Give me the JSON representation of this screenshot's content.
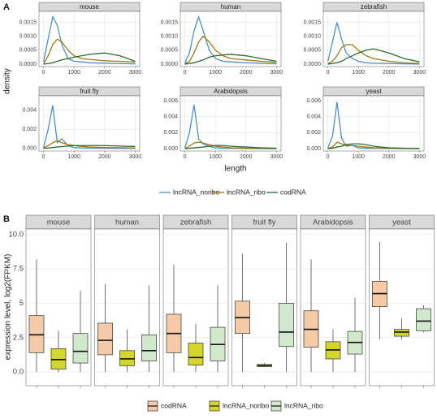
{
  "chart_data": [
    {
      "type": "line",
      "label": "A",
      "x_label": "length",
      "y_label": "density",
      "grid": true,
      "series": [
        {
          "name": "lncRNA_noribo",
          "color": "#4a90c8"
        },
        {
          "name": "lncRNA_ribo",
          "color": "#a07a10"
        },
        {
          "name": "codRNA",
          "color": "#2a6e2a"
        }
      ],
      "x": [
        0,
        150,
        300,
        450,
        600,
        800,
        1000,
        1250,
        1500,
        2000,
        2500,
        3000
      ],
      "xlim": [
        -150,
        3150
      ],
      "xticks": [
        0,
        1000,
        2000,
        3000
      ],
      "facets": [
        {
          "title": "mouse",
          "ylim": [
            -9e-05,
            0.0019
          ],
          "yticks": [
            {
              "value": 0,
              "label": "0.0000"
            },
            {
              "value": 0.0005,
              "label": "0.0005"
            },
            {
              "value": 0.001,
              "label": "0.0010"
            },
            {
              "value": 0.0015,
              "label": "0.0015"
            }
          ],
          "series": [
            {
              "values": [
                0.0001,
                0.0009,
                0.0017,
                0.0014,
                0.0007,
                0.0002,
                0.0001,
                8e-05,
                5e-05,
                3e-05,
                2e-05,
                1e-05
              ]
            },
            {
              "values": [
                2e-05,
                0.0003,
                0.0007,
                0.0009,
                0.0008,
                0.0005,
                0.0003,
                0.0002,
                0.00017,
                0.00012,
                0.0001,
                7e-05
              ]
            },
            {
              "values": [
                0,
                2e-05,
                5e-05,
                0.0001,
                0.00015,
                0.0002,
                0.00025,
                0.0003,
                0.00035,
                0.0004,
                0.0003,
                0.0001
              ]
            }
          ]
        },
        {
          "title": "human",
          "ylim": [
            -9e-05,
            0.0019
          ],
          "yticks": [
            {
              "value": 0,
              "label": "0.0000"
            },
            {
              "value": 0.0005,
              "label": "0.0005"
            },
            {
              "value": 0.001,
              "label": "0.0010"
            },
            {
              "value": 0.0015,
              "label": "0.0015"
            }
          ],
          "series": [
            {
              "values": [
                5e-05,
                0.0004,
                0.0012,
                0.0017,
                0.0012,
                0.0005,
                0.0002,
                0.0001,
                8e-05,
                5e-05,
                3e-05,
                1e-05
              ]
            },
            {
              "values": [
                2e-05,
                0.0001,
                0.0004,
                0.0008,
                0.001,
                0.0008,
                0.0005,
                0.0003,
                0.0002,
                0.00015,
                0.0001,
                6e-05
              ]
            },
            {
              "values": [
                0,
                2e-05,
                5e-05,
                0.0001,
                0.00015,
                0.00025,
                0.0003,
                0.00033,
                0.00035,
                0.0003,
                0.0002,
                0.0001
              ]
            }
          ]
        },
        {
          "title": "zebrafish",
          "ylim": [
            -9e-05,
            0.0019
          ],
          "yticks": [
            {
              "value": 0,
              "label": "0.0000"
            },
            {
              "value": 0.0005,
              "label": "0.0005"
            },
            {
              "value": 0.001,
              "label": "0.0010"
            },
            {
              "value": 0.0015,
              "label": "0.0015"
            }
          ],
          "series": [
            {
              "values": [
                0.0001,
                0.0008,
                0.0015,
                0.0009,
                0.0004,
                0.0002,
                0.0001,
                5e-05,
                3e-05,
                2e-05,
                1e-05,
                0
              ]
            },
            {
              "values": [
                2e-05,
                0.0001,
                0.0003,
                0.0006,
                0.0007,
                0.0007,
                0.0005,
                0.0003,
                0.0002,
                0.0001,
                5e-05,
                2e-05
              ]
            },
            {
              "values": [
                0,
                2e-05,
                5e-05,
                0.0001,
                0.0002,
                0.0003,
                0.0004,
                0.0005,
                0.00055,
                0.0004,
                0.0002,
                8e-05
              ]
            }
          ]
        },
        {
          "title": "fruit fly",
          "ylim": [
            -0.00027,
            0.0055
          ],
          "yticks": [
            {
              "value": 0,
              "label": "0.000"
            },
            {
              "value": 0.002,
              "label": "0.002"
            },
            {
              "value": 0.004,
              "label": "0.004"
            }
          ],
          "series": [
            {
              "values": [
                0.0001,
                0.002,
                0.0045,
                0.0006,
                0.001,
                0.0003,
                0.0001,
                5e-05,
                3e-05,
                2e-05,
                1e-05,
                0
              ]
            },
            {
              "values": [
                5e-05,
                0.0003,
                0.0006,
                0.0008,
                0.0006,
                0.0004,
                0.0003,
                0.0002,
                0.00015,
                0.0001,
                8e-05,
                5e-05
              ]
            },
            {
              "values": [
                1e-05,
                5e-05,
                0.0001,
                0.00015,
                0.0002,
                0.00025,
                0.0003,
                0.0003,
                0.0003,
                0.0003,
                0.00025,
                0.0002
              ]
            }
          ]
        },
        {
          "title": "Arabidopsis",
          "ylim": [
            -0.0003,
            0.0066
          ],
          "yticks": [
            {
              "value": 0,
              "label": "0.000"
            },
            {
              "value": 0.002,
              "label": "0.002"
            },
            {
              "value": 0.004,
              "label": "0.004"
            },
            {
              "value": 0.006,
              "label": "0.006"
            }
          ],
          "series": [
            {
              "values": [
                0.0001,
                0.002,
                0.0055,
                0.0012,
                0.0006,
                0.0003,
                0.0001,
                5e-05,
                3e-05,
                2e-05,
                1e-05,
                0
              ]
            },
            {
              "values": [
                5e-05,
                0.0003,
                0.0007,
                0.0008,
                0.0007,
                0.0005,
                0.0003,
                0.0002,
                0.0001,
                5e-05,
                3e-05,
                2e-05
              ]
            },
            {
              "values": [
                0,
                5e-05,
                0.0001,
                0.00015,
                0.0002,
                0.0003,
                0.0004,
                0.0004,
                0.0003,
                0.0002,
                0.0001,
                5e-05
              ]
            }
          ]
        },
        {
          "title": "yeast",
          "ylim": [
            -0.0003,
            0.0066
          ],
          "yticks": [
            {
              "value": 0,
              "label": "0.000"
            },
            {
              "value": 0.002,
              "label": "0.002"
            },
            {
              "value": 0.004,
              "label": "0.004"
            },
            {
              "value": 0.006,
              "label": "0.006"
            }
          ],
          "series": [
            {
              "values": [
                0.0001,
                0.0015,
                0.0058,
                0.0013,
                0.0003,
                0.0004,
                0.0001,
                5e-05,
                3e-05,
                2e-05,
                1e-05,
                0
              ]
            },
            {
              "values": [
                5e-05,
                0.0002,
                0.0008,
                0.0006,
                0.0004,
                0.0004,
                0.0003,
                0.0002,
                0.0001,
                5e-05,
                2e-05,
                1e-05
              ]
            },
            {
              "values": [
                0,
                5e-05,
                0.0002,
                0.0003,
                0.0005,
                0.0006,
                0.0006,
                0.0005,
                0.0003,
                0.0001,
                5e-05,
                2e-05
              ]
            }
          ]
        }
      ]
    },
    {
      "type": "box",
      "label": "B",
      "y_label": "expression level, log2(FPKM)",
      "grid": true,
      "series": [
        {
          "name": "codRNA",
          "color": "#f5cba7"
        },
        {
          "name": "lncRNA_noribo",
          "color": "#d4d62c"
        },
        {
          "name": "lncRNA_ribo",
          "color": "#d2e8cc"
        }
      ],
      "ylim": [
        -1.0,
        10.4
      ],
      "yticks": [
        {
          "value": 0,
          "label": "0.0"
        },
        2.5,
        5,
        7.5,
        {
          "value": 10,
          "label": "10.0"
        }
      ],
      "facets": [
        {
          "title": "mouse",
          "boxes": [
            [
              0,
              1.4,
              2.7,
              4.1,
              8.2
            ],
            [
              0,
              0.2,
              0.9,
              1.7,
              3.0
            ],
            [
              0,
              0.65,
              1.5,
              2.8,
              5.9
            ]
          ]
        },
        {
          "title": "human",
          "boxes": [
            [
              0,
              1.25,
              2.3,
              3.55,
              6.4
            ],
            [
              0,
              0.45,
              0.95,
              1.55,
              3.1
            ],
            [
              0,
              0.8,
              1.55,
              2.7,
              6.3
            ]
          ]
        },
        {
          "title": "zebrafish",
          "boxes": [
            [
              0,
              1.4,
              2.8,
              4.2,
              7.8
            ],
            [
              0,
              0.5,
              1.05,
              2.1,
              3.5
            ],
            [
              0,
              0.8,
              2.0,
              3.25,
              6.3
            ]
          ]
        },
        {
          "title": "fruit fly",
          "boxes": [
            [
              0,
              2.8,
              3.95,
              5.15,
              8.6
            ],
            [
              0.35,
              0.4,
              0.45,
              0.55,
              0.65
            ],
            [
              0,
              1.85,
              2.9,
              5.0,
              9.4
            ]
          ]
        },
        {
          "title": "Arabidopsis",
          "boxes": [
            [
              0,
              1.8,
              3.1,
              4.45,
              8.2
            ],
            [
              0,
              0.95,
              1.6,
              2.2,
              3.1
            ],
            [
              0,
              1.3,
              2.15,
              2.95,
              5.4
            ]
          ]
        },
        {
          "title": "yeast",
          "boxes": [
            [
              2.4,
              4.75,
              5.7,
              6.6,
              9.45
            ],
            [
              2.35,
              2.6,
              2.9,
              3.1,
              3.9
            ],
            [
              2.9,
              3.0,
              3.7,
              4.6,
              4.85
            ]
          ]
        }
      ]
    }
  ]
}
